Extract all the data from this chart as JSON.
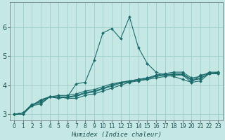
{
  "xlabel": "Humidex (Indice chaleur)",
  "background_color": "#c5e8e5",
  "grid_color": "#9ecece",
  "line_color": "#1a6b6b",
  "xlim": [
    -0.5,
    23.5
  ],
  "ylim": [
    2.8,
    6.85
  ],
  "xticks": [
    0,
    1,
    2,
    3,
    4,
    5,
    6,
    7,
    8,
    9,
    10,
    11,
    12,
    13,
    14,
    15,
    16,
    17,
    18,
    19,
    20,
    21,
    22,
    23
  ],
  "yticks": [
    3,
    4,
    5,
    6
  ],
  "lines": [
    [
      3.0,
      3.0,
      3.3,
      3.35,
      3.6,
      3.55,
      3.6,
      4.05,
      4.1,
      4.85,
      5.8,
      5.95,
      5.6,
      6.35,
      5.3,
      4.75,
      4.45,
      4.35,
      4.3,
      4.2,
      4.1,
      4.35,
      4.4,
      4.4
    ],
    [
      3.0,
      3.05,
      3.35,
      3.4,
      3.6,
      3.6,
      3.55,
      3.55,
      3.65,
      3.7,
      3.8,
      3.9,
      4.0,
      4.1,
      4.15,
      4.2,
      4.25,
      4.3,
      4.35,
      4.35,
      4.1,
      4.15,
      4.4,
      4.4
    ],
    [
      3.0,
      3.05,
      3.3,
      3.45,
      3.6,
      3.58,
      3.58,
      3.62,
      3.72,
      3.77,
      3.87,
      3.97,
      4.07,
      4.12,
      4.17,
      4.22,
      4.32,
      4.37,
      4.37,
      4.37,
      4.17,
      4.22,
      4.42,
      4.42
    ],
    [
      3.0,
      3.05,
      3.3,
      3.5,
      3.6,
      3.6,
      3.6,
      3.65,
      3.75,
      3.8,
      3.9,
      4.0,
      4.1,
      4.15,
      4.2,
      4.25,
      4.3,
      4.35,
      4.4,
      4.4,
      4.2,
      4.25,
      4.4,
      4.45
    ],
    [
      3.0,
      3.05,
      3.3,
      3.5,
      3.6,
      3.65,
      3.65,
      3.7,
      3.8,
      3.85,
      3.95,
      4.05,
      4.1,
      4.15,
      4.2,
      4.25,
      4.35,
      4.4,
      4.45,
      4.45,
      4.25,
      4.3,
      4.45,
      4.45
    ]
  ],
  "marker": "D",
  "marker_size": 2.0,
  "line_width": 0.8,
  "xlabel_fontsize": 6.5,
  "tick_labelsize": 5.5,
  "ytick_labelsize": 7
}
